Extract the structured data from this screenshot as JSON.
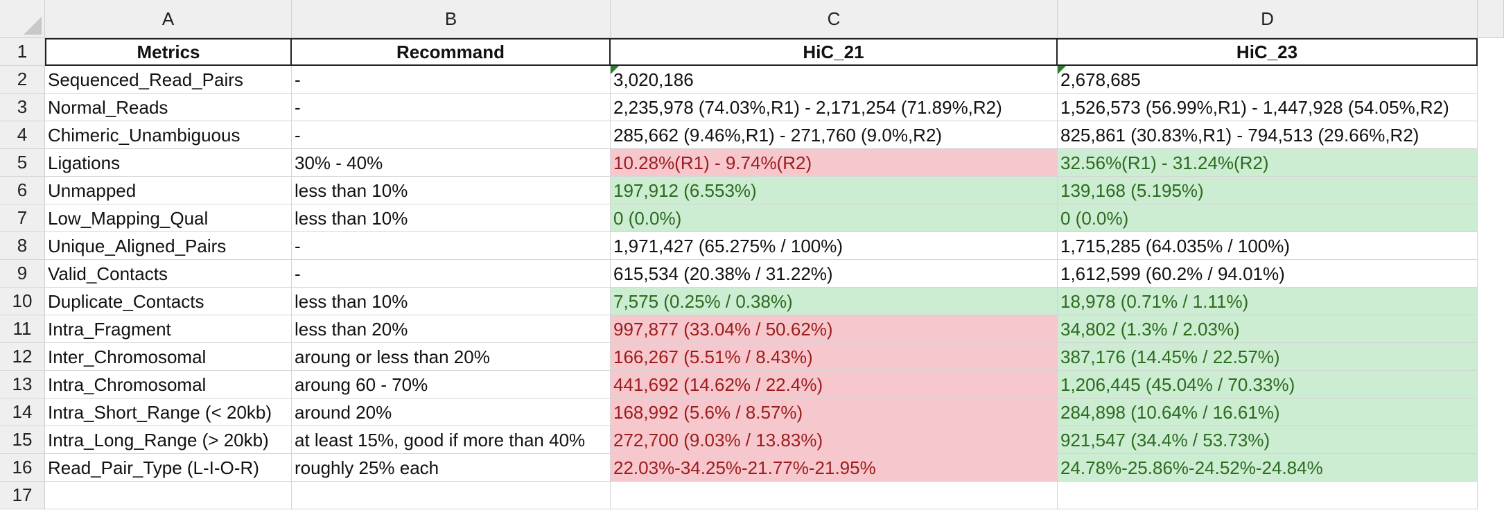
{
  "columns": [
    "A",
    "B",
    "C",
    "D"
  ],
  "row_numbers": [
    "1",
    "2",
    "3",
    "4",
    "5",
    "6",
    "7",
    "8",
    "9",
    "10",
    "11",
    "12",
    "13",
    "14",
    "15",
    "16",
    "17"
  ],
  "headers": {
    "metrics": "Metrics",
    "recommand": "Recommand",
    "hic21": "HiC_21",
    "hic23": "HiC_23"
  },
  "rows": [
    {
      "metric": "Sequenced_Read_Pairs",
      "recommand": "-",
      "hic21": "3,020,186",
      "hic23": "2,678,685",
      "c_status": "none",
      "d_status": "none",
      "flag": true
    },
    {
      "metric": "Normal_Reads",
      "recommand": "-",
      "hic21": "2,235,978 (74.03%,R1) - 2,171,254 (71.89%,R2)",
      "hic23": "1,526,573 (56.99%,R1) - 1,447,928 (54.05%,R2)",
      "c_status": "none",
      "d_status": "none"
    },
    {
      "metric": "Chimeric_Unambiguous",
      "recommand": "-",
      "hic21": "285,662 (9.46%,R1) - 271,760 (9.0%,R2)",
      "hic23": "825,861 (30.83%,R1) - 794,513 (29.66%,R2)",
      "c_status": "none",
      "d_status": "none"
    },
    {
      "metric": "Ligations",
      "recommand": "30% - 40%",
      "hic21": "10.28%(R1) - 9.74%(R2)",
      "hic23": "32.56%(R1) - 31.24%(R2)",
      "c_status": "red",
      "d_status": "green"
    },
    {
      "metric": "Unmapped",
      "recommand": "less than 10%",
      "hic21": "197,912 (6.553%)",
      "hic23": "139,168 (5.195%)",
      "c_status": "green",
      "d_status": "green"
    },
    {
      "metric": "Low_Mapping_Qual",
      "recommand": "less than 10%",
      "hic21": "0 (0.0%)",
      "hic23": "0 (0.0%)",
      "c_status": "green",
      "d_status": "green"
    },
    {
      "metric": "Unique_Aligned_Pairs",
      "recommand": "-",
      "hic21": "1,971,427 (65.275% / 100%)",
      "hic23": "1,715,285 (64.035% / 100%)",
      "c_status": "none",
      "d_status": "none"
    },
    {
      "metric": "Valid_Contacts",
      "recommand": "-",
      "hic21": "615,534 (20.38% / 31.22%)",
      "hic23": "1,612,599 (60.2% / 94.01%)",
      "c_status": "none",
      "d_status": "none"
    },
    {
      "metric": "Duplicate_Contacts",
      "recommand": "less than 10%",
      "hic21": "7,575 (0.25% / 0.38%)",
      "hic23": "18,978 (0.71% / 1.11%)",
      "c_status": "green",
      "d_status": "green"
    },
    {
      "metric": "Intra_Fragment",
      "recommand": "less than 20%",
      "hic21": "997,877 (33.04% / 50.62%)",
      "hic23": "34,802 (1.3% / 2.03%)",
      "c_status": "red",
      "d_status": "green"
    },
    {
      "metric": "Inter_Chromosomal",
      "recommand": "aroung or less than 20%",
      "hic21": "166,267 (5.51% / 8.43%)",
      "hic23": "387,176 (14.45% / 22.57%)",
      "c_status": "red",
      "d_status": "green"
    },
    {
      "metric": "Intra_Chromosomal",
      "recommand": "aroung 60 - 70%",
      "hic21": "441,692 (14.62% / 22.4%)",
      "hic23": "1,206,445 (45.04% / 70.33%)",
      "c_status": "red",
      "d_status": "green"
    },
    {
      "metric": "Intra_Short_Range (< 20kb)",
      "recommand": "around 20%",
      "hic21": "168,992 (5.6% / 8.57%)",
      "hic23": "284,898 (10.64% / 16.61%)",
      "c_status": "red",
      "d_status": "green"
    },
    {
      "metric": "Intra_Long_Range (> 20kb)",
      "recommand": "at least 15%, good if more than 40%",
      "hic21": "272,700 (9.03% / 13.83%)",
      "hic23": "921,547 (34.4% / 53.73%)",
      "c_status": "red",
      "d_status": "green"
    },
    {
      "metric": "Read_Pair_Type (L-I-O-R)",
      "recommand": "roughly 25% each",
      "hic21": "22.03%-34.25%-21.77%-21.95%",
      "hic23": "24.78%-25.86%-24.52%-24.84%",
      "c_status": "red",
      "d_status": "green"
    },
    {
      "metric": "",
      "recommand": "",
      "hic21": "",
      "hic23": "",
      "c_status": "none",
      "d_status": "none"
    }
  ]
}
